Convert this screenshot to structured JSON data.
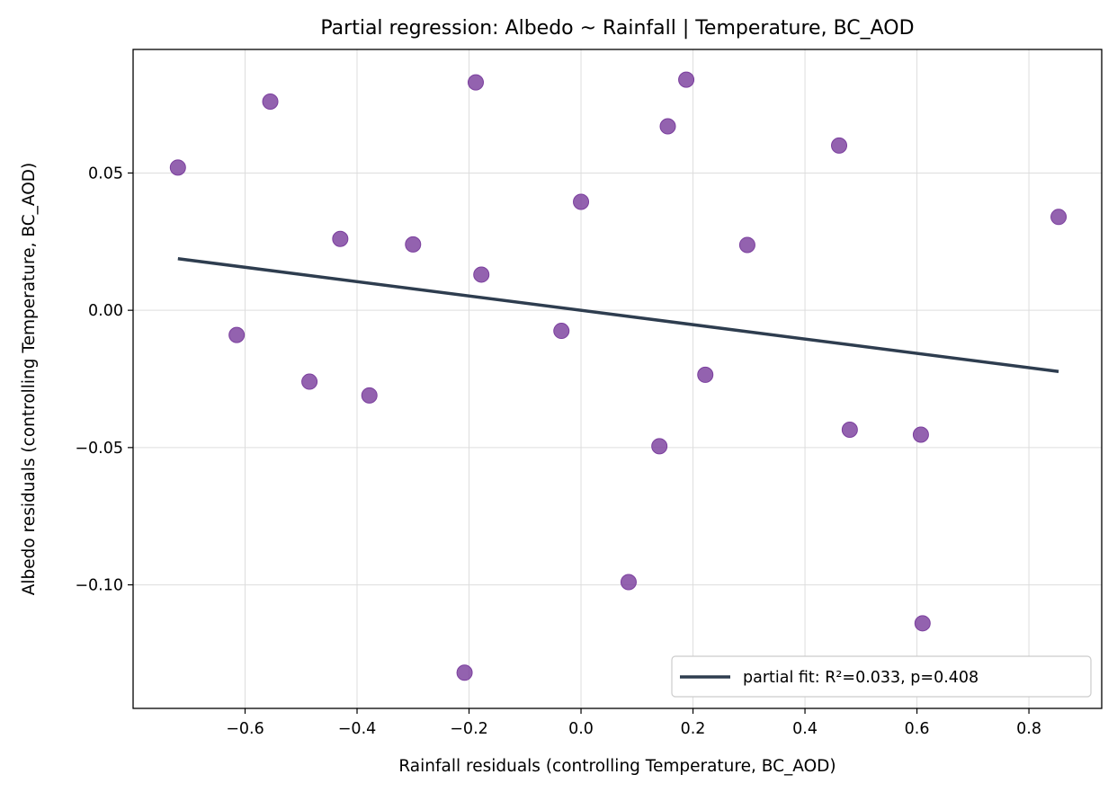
{
  "chart_data": {
    "type": "scatter",
    "title": "Partial regression: Albedo ~ Rainfall | Temperature, BC_AOD",
    "xlabel": "Rainfall residuals (controlling Temperature, BC_AOD)",
    "ylabel": "Albedo residuals (controlling Temperature, BC_AOD)",
    "xlim": [
      -0.8,
      0.93
    ],
    "ylim": [
      -0.145,
      0.095
    ],
    "xticks": [
      -0.6,
      -0.4,
      -0.2,
      0.0,
      0.2,
      0.4,
      0.6,
      0.8
    ],
    "xtick_labels": [
      "−0.6",
      "−0.4",
      "−0.2",
      "0.0",
      "0.2",
      "0.4",
      "0.6",
      "0.8"
    ],
    "yticks": [
      0.05,
      0.0,
      -0.05,
      -0.1
    ],
    "ytick_labels": [
      "0.05",
      "0.00",
      "−0.05",
      "−0.10"
    ],
    "grid": true,
    "legend_position": "lower-right",
    "colors": {
      "points": "#7b3f9e",
      "fit_line": "#2e3d4f"
    },
    "points": {
      "x": [
        -0.72,
        -0.555,
        -0.615,
        -0.485,
        -0.43,
        -0.378,
        -0.3,
        -0.188,
        -0.178,
        -0.208,
        -0.035,
        0.0,
        0.085,
        0.14,
        0.155,
        0.188,
        0.222,
        0.297,
        0.461,
        0.48,
        0.607,
        0.61,
        0.853
      ],
      "y": [
        0.052,
        0.076,
        -0.009,
        -0.026,
        0.026,
        -0.031,
        0.024,
        0.083,
        0.013,
        -0.132,
        -0.0075,
        0.0395,
        -0.099,
        -0.0495,
        0.067,
        0.084,
        -0.0235,
        0.0238,
        0.06,
        -0.0435,
        -0.0453,
        -0.114,
        0.034
      ]
    },
    "series": [
      {
        "name": "partial fit: R²=0.033, p=0.408",
        "type": "line",
        "x": [
          -0.72,
          0.853
        ],
        "y": [
          0.0188,
          -0.0223
        ]
      }
    ]
  }
}
